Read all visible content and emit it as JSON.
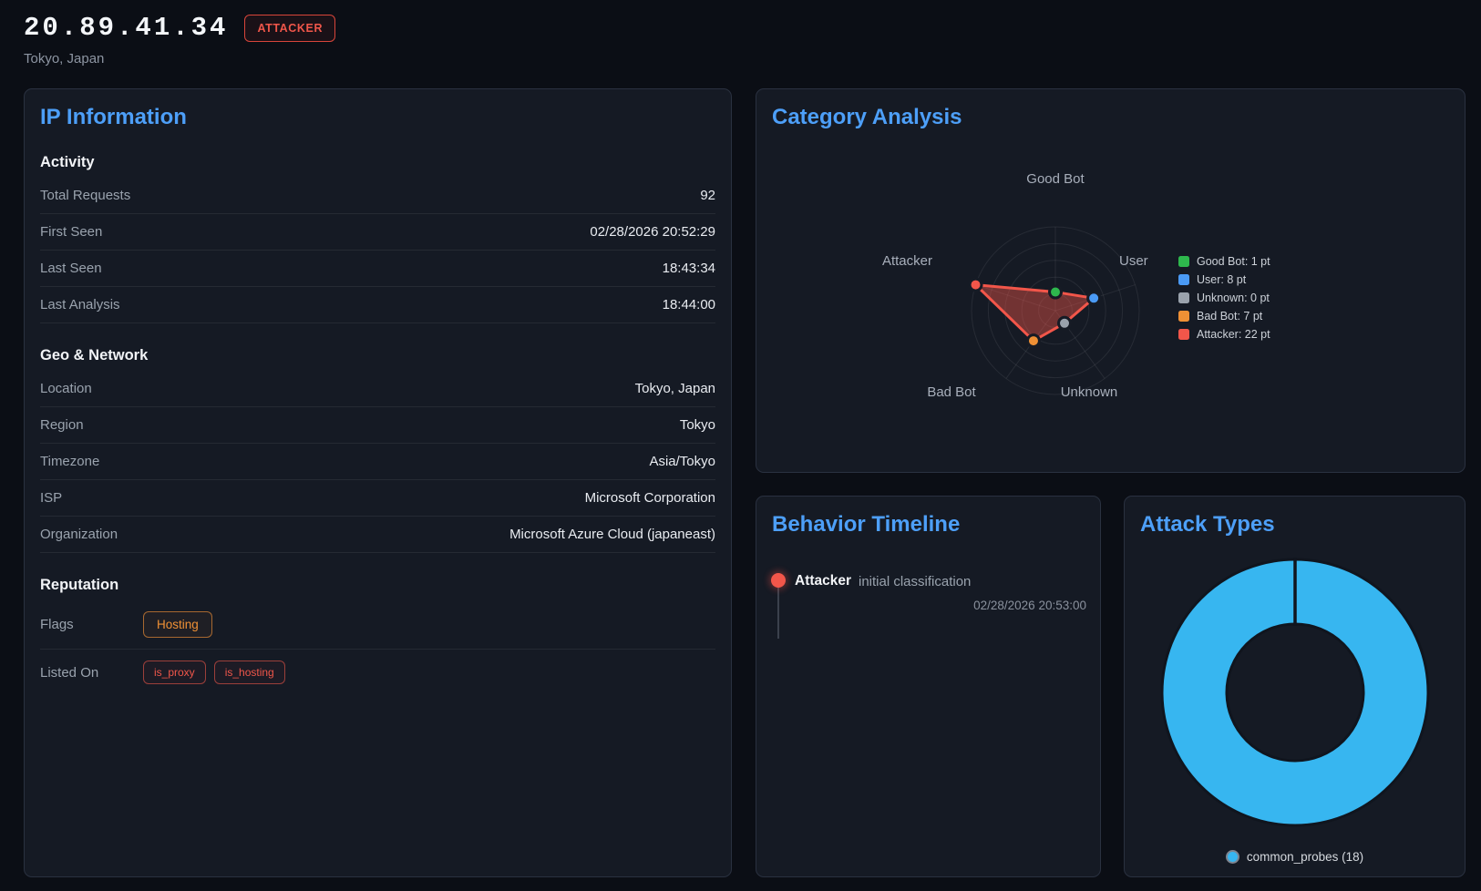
{
  "header": {
    "ip": "20.89.41.34",
    "classification_badge": "ATTACKER",
    "location": "Tokyo, Japan"
  },
  "ip_information": {
    "title": "IP Information",
    "sections": [
      {
        "heading": "Activity",
        "rows": [
          {
            "label": "Total Requests",
            "value": "92"
          },
          {
            "label": "First Seen",
            "value": "02/28/2026 20:52:29"
          },
          {
            "label": "Last Seen",
            "value": "18:43:34"
          },
          {
            "label": "Last Analysis",
            "value": "18:44:00"
          }
        ]
      },
      {
        "heading": "Geo & Network",
        "rows": [
          {
            "label": "Location",
            "value": "Tokyo, Japan"
          },
          {
            "label": "Region",
            "value": "Tokyo"
          },
          {
            "label": "Timezone",
            "value": "Asia/Tokyo"
          },
          {
            "label": "ISP",
            "value": "Microsoft Corporation"
          },
          {
            "label": "Organization",
            "value": "Microsoft Azure Cloud (japaneast)"
          }
        ]
      },
      {
        "heading": "Reputation",
        "badge_rows": [
          {
            "label": "Flags",
            "badges": [
              {
                "text": "Hosting",
                "style": "orange"
              }
            ]
          },
          {
            "label": "Listed On",
            "badges": [
              {
                "text": "is_proxy",
                "style": "red"
              },
              {
                "text": "is_hosting",
                "style": "red"
              }
            ]
          }
        ]
      }
    ]
  },
  "category_analysis": {
    "title": "Category Analysis"
  },
  "behavior_timeline": {
    "title": "Behavior Timeline",
    "events": [
      {
        "category": "Attacker",
        "description": "initial classification",
        "timestamp": "02/28/2026 20:53:00",
        "color": "#f2564a"
      }
    ]
  },
  "attack_types": {
    "title": "Attack Types"
  },
  "chart_data": [
    {
      "type": "radar",
      "title": "Category Analysis",
      "categories": [
        "Good Bot",
        "User",
        "Unknown",
        "Bad Bot",
        "Attacker"
      ],
      "values": [
        1,
        8,
        0,
        7,
        22
      ],
      "unit": "pt",
      "legend": [
        "Good Bot: 1 pt",
        "User: 8 pt",
        "Unknown: 0 pt",
        "Bad Bot: 7 pt",
        "Attacker: 22 pt"
      ],
      "legend_position": "right",
      "point_colors": [
        "#2eb84d",
        "#4a9af5",
        "#9aa2ac",
        "#ef9035",
        "#f2564a"
      ],
      "series_stroke": "#f2564a",
      "series_fill": "rgba(242,86,74,0.42)",
      "grid_color": "rgba(255,255,255,0.08)",
      "scale": {
        "min": -5,
        "max": 22,
        "rings": 5
      }
    },
    {
      "type": "donut",
      "title": "Attack Types",
      "categories": [
        "common_probes"
      ],
      "values": [
        18
      ],
      "colors": [
        "#37b6f0"
      ],
      "legend": [
        "common_probes (18)"
      ]
    }
  ]
}
